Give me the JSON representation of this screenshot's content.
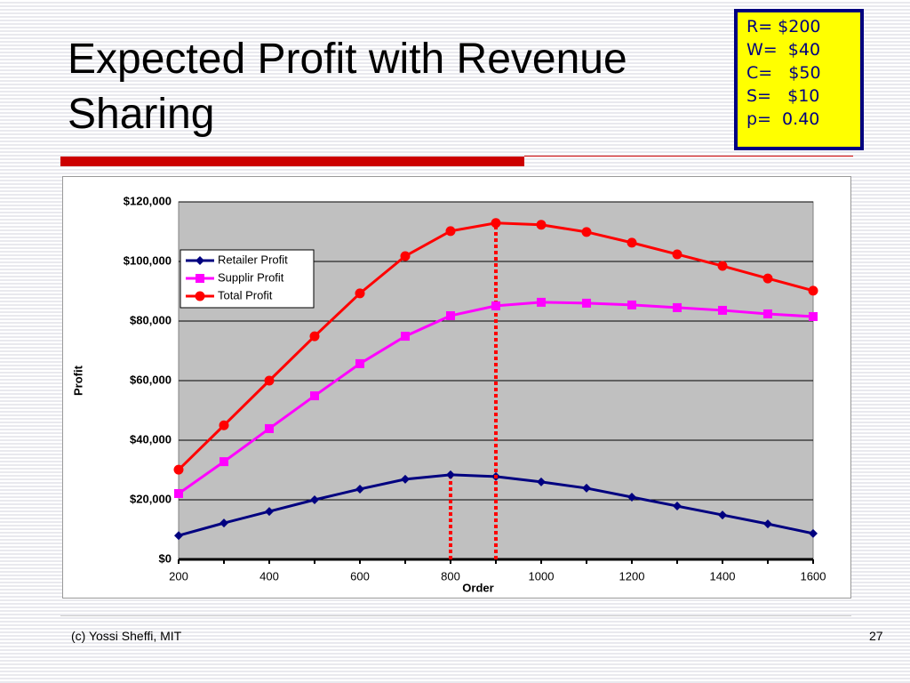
{
  "slide": {
    "title": "Expected Profit with Revenue Sharing",
    "params": [
      "R= $200",
      "W=  $40",
      "C=   $50",
      "S=   $10",
      "p=  0.40"
    ],
    "footer": "(c) Yossi Sheffi, MIT",
    "page": "27"
  },
  "chart_data": {
    "type": "line",
    "x": [
      200,
      300,
      400,
      500,
      600,
      700,
      800,
      900,
      1000,
      1100,
      1200,
      1300,
      1400,
      1500,
      1600
    ],
    "series": [
      {
        "name": "Retailer Profit",
        "color": "#000080",
        "marker": "diamond",
        "values": [
          8000,
          12200,
          16100,
          20000,
          23600,
          26900,
          28400,
          27800,
          26000,
          23900,
          20900,
          17900,
          14900,
          11900,
          8700
        ]
      },
      {
        "name": "Supplir Profit",
        "color": "#ff00ff",
        "marker": "square",
        "values": [
          22100,
          32800,
          43900,
          54900,
          65700,
          74900,
          81800,
          85100,
          86300,
          86000,
          85400,
          84500,
          83600,
          82400,
          81500
        ]
      },
      {
        "name": "Total Profit",
        "color": "#ff0000",
        "marker": "circle",
        "values": [
          30100,
          45000,
          60000,
          74900,
          89300,
          101800,
          110200,
          112900,
          112300,
          109900,
          106300,
          102400,
          98500,
          94300,
          90200
        ]
      }
    ],
    "xlim": [
      200,
      1600
    ],
    "xticks": [
      200,
      400,
      600,
      800,
      1000,
      1200,
      1400,
      1600
    ],
    "ylim": [
      0,
      120000
    ],
    "yticks": [
      {
        "value": 0,
        "label": "$0"
      },
      {
        "value": 20000,
        "label": "$20,000"
      },
      {
        "value": 40000,
        "label": "$40,000"
      },
      {
        "value": 60000,
        "label": "$60,000"
      },
      {
        "value": 80000,
        "label": "$80,000"
      },
      {
        "value": 100000,
        "label": "$100,000"
      },
      {
        "value": 120000,
        "label": "$120,000"
      }
    ],
    "xlabel": "Order",
    "ylabel": "Profit",
    "grid": true,
    "legend": "upper left"
  }
}
